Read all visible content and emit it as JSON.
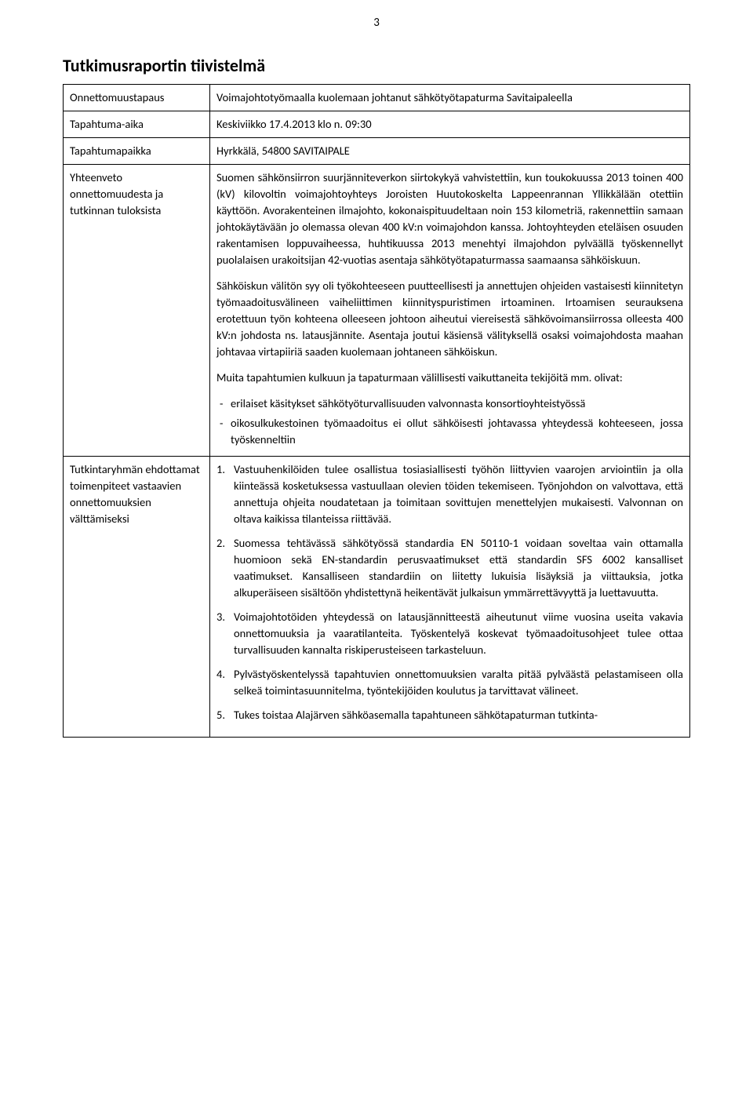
{
  "page_number": "3",
  "title": "Tutkimusraportin tiivistelmä",
  "rows": {
    "r1": {
      "label": "Onnettomuustapaus",
      "value": "Voimajohtotyömaalla kuolemaan johtanut sähkötyötapaturma Savitaipaleella"
    },
    "r2": {
      "label": "Tapahtuma-aika",
      "value": "Keskiviikko 17.4.2013 klo n. 09:30"
    },
    "r3": {
      "label": "Tapahtumapaikka",
      "value": "Hyrkkälä, 54800 SAVITAIPALE"
    },
    "r4": {
      "label": "Yhteenveto onnettomuudesta ja tutkinnan tuloksista",
      "p1": "Suomen sähkönsiirron suurjänniteverkon siirtokykyä vahvistettiin, kun toukokuussa 2013 toinen 400 (kV) kilovoltin voimajohtoyhteys Joroisten Huutokoskelta Lappeenrannan Yllikkälään otettiin käyttöön. Avorakenteinen ilmajohto, kokonaispituudeltaan noin 153 kilometriä, rakennettiin samaan johtokäytävään jo olemassa olevan 400 kV:n voimajohdon kanssa. Johtoyhteyden eteläisen osuuden rakentamisen loppuvaiheessa, huhtikuussa 2013 menehtyi ilmajohdon pylväällä työskennellyt puolalaisen urakoitsijan 42-vuotias asentaja sähkötyötapaturmassa saamaansa sähköiskuun.",
      "p2": "Sähköiskun välitön syy oli työkohteeseen puutteellisesti ja annettujen ohjeiden vastaisesti kiinnitetyn työmaadoitusvälineen vaiheliittimen kiinnityspuristimen irtoaminen. Irtoamisen seurauksena erotettuun työn kohteena olleeseen johtoon aiheutui viereisestä sähkövoimansiirrossa olleesta 400 kV:n johdosta ns. latausjännite. Asentaja joutui käsiensä välityksellä osaksi voimajohdosta maahan johtavaa virtapiiriä saaden kuolemaan johtaneen sähköiskun.",
      "p3": "Muita tapahtumien kulkuun ja tapaturmaan välillisesti vaikuttaneita tekijöitä mm. olivat:",
      "bullets": [
        "erilaiset käsitykset sähkötyöturvallisuuden valvonnasta konsortioyhteistyössä",
        "oikosulkukestoinen työmaadoitus ei ollut sähköisesti johtavassa yhteydessä kohteeseen, jossa työskenneltiin"
      ]
    },
    "r5": {
      "label": "Tutkintaryhmän ehdottamat toimenpiteet vastaavien onnettomuuksien välttämiseksi",
      "items": [
        "Vastuuhenkilöiden tulee osallistua tosiasiallisesti työhön liittyvien vaarojen arviointiin ja olla kiinteässä kosketuksessa vastuullaan olevien töiden tekemiseen. Työnjohdon on valvottava, että annettuja ohjeita noudatetaan ja toimitaan sovittujen menettelyjen mukaisesti. Valvonnan on oltava kaikissa tilanteissa riittävää.",
        "Suomessa tehtävässä sähkötyössä standardia EN 50110-1 voidaan soveltaa vain ottamalla huomioon sekä EN-standardin perusvaatimukset että standardin SFS 6002 kansalliset vaatimukset. Kansalliseen standardiin on liitetty lukuisia lisäyksiä ja viittauksia, jotka alkuperäiseen sisältöön yhdistettynä heikentävät julkaisun ymmärrettävyyttä ja luettavuutta.",
        "Voimajohtotöiden yhteydessä on latausjännitteestä aiheutunut viime vuosina useita vakavia onnettomuuksia ja vaaratilanteita. Työskentelyä koskevat työmaadoitusohjeet tulee ottaa turvallisuuden kannalta riskiperusteiseen tarkasteluun.",
        "Pylvästyöskentelyssä tapahtuvien onnettomuuksien varalta pitää pylväästä pelastamiseen olla selkeä toimintasuunnitelma, työntekijöiden koulutus ja tarvittavat välineet.",
        "Tukes toistaa Alajärven sähköasemalla tapahtuneen sähkötapaturman tutkinta-"
      ]
    }
  }
}
